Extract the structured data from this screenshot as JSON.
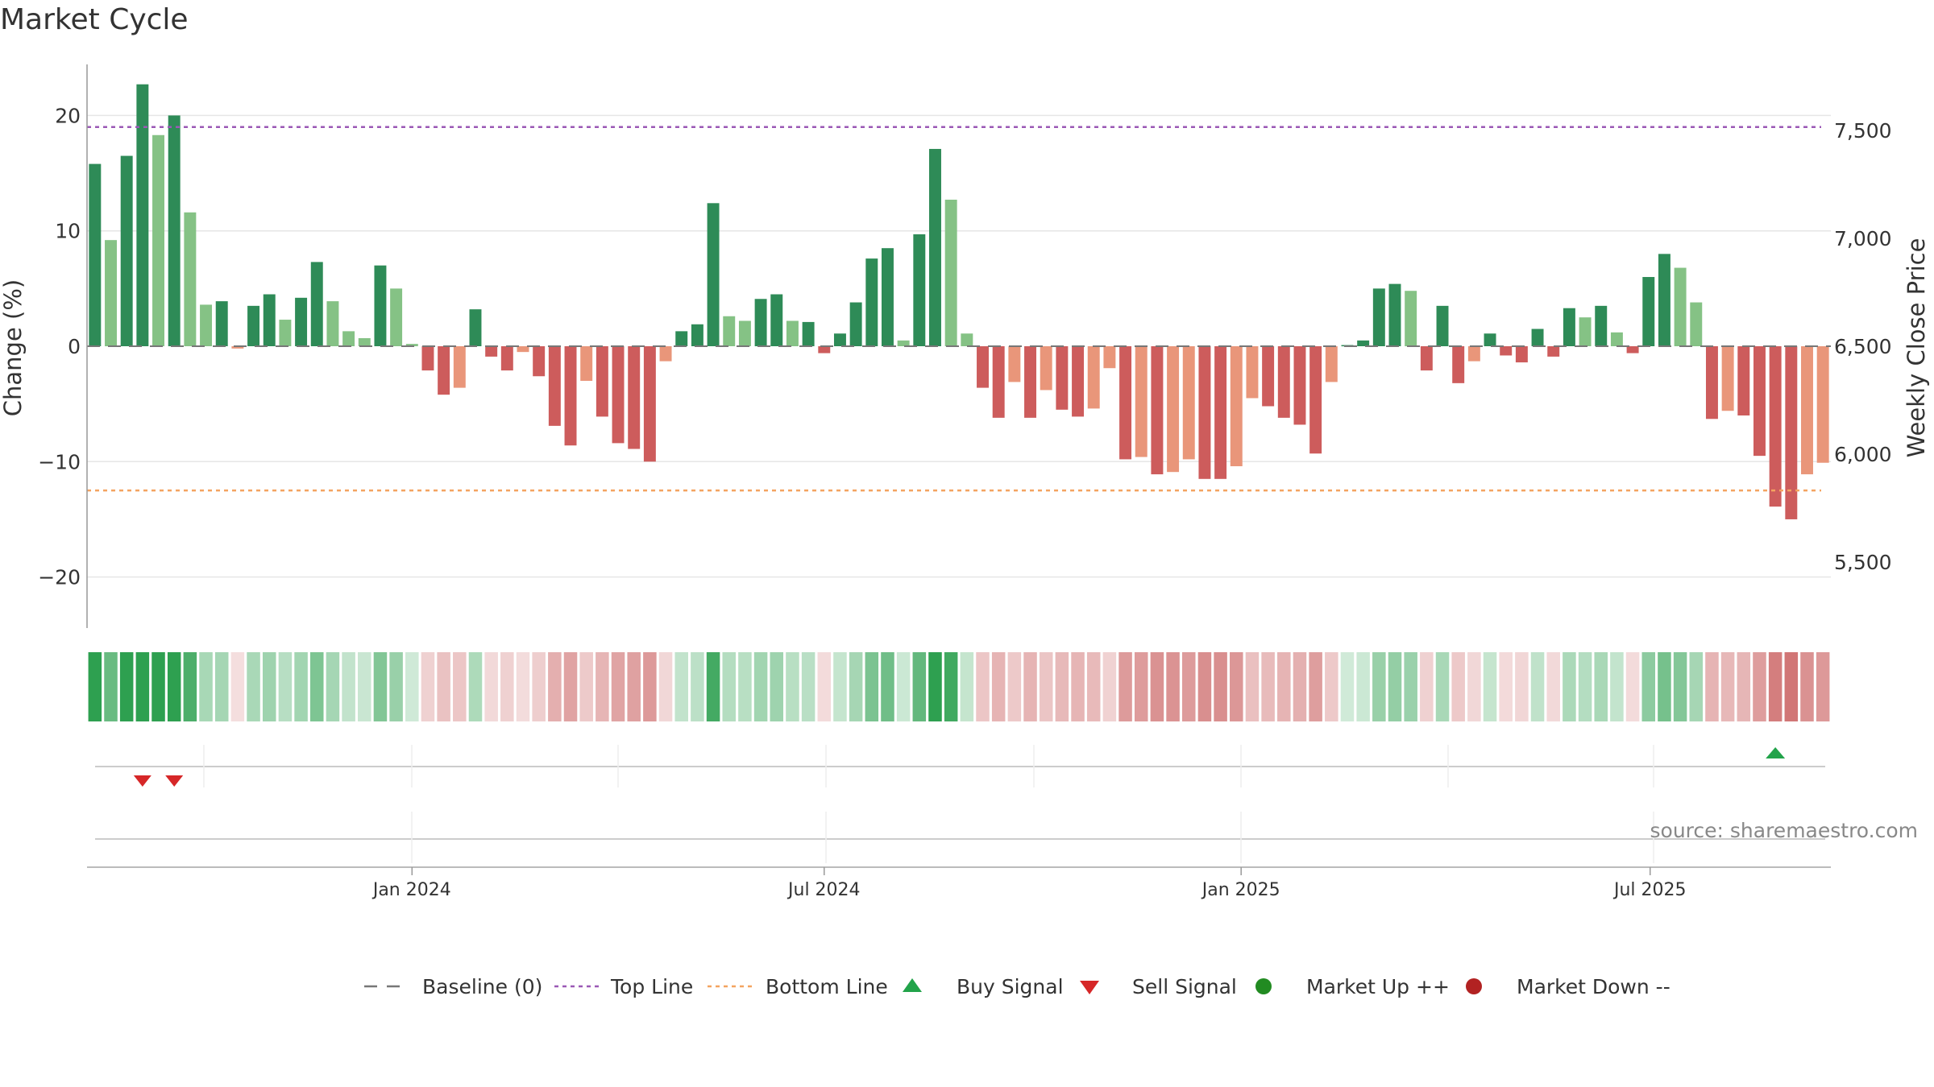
{
  "chart_data": {
    "type": "bar",
    "title": "Market Cycle",
    "ylabel_left": "Change (%)",
    "ylabel_right": "Weekly Close Price",
    "source": "source: sharemaestro.com",
    "ylim_left": [
      -24.5,
      24.5
    ],
    "yticks_left": [
      20,
      10,
      0,
      -10,
      -20
    ],
    "ytick_labels_left": [
      "20",
      "10",
      "0",
      "−10",
      "−20"
    ],
    "yticks_right_labels": [
      "7,500",
      "7,000",
      "6,500",
      "6,000",
      "5,500"
    ],
    "yticks_right_values": [
      7500,
      7000,
      6500,
      6000,
      5500
    ],
    "top_line": 19,
    "bottom_line": -12.5,
    "x_ticks": [
      "Jan 2024",
      "Jul 2024",
      "Jan 2025",
      "Jul 2025"
    ],
    "x_tick_index": [
      20.5,
      46.5,
      72.8,
      98.6
    ],
    "grid": true,
    "legend_position": "bottom",
    "values": [
      15.8,
      9.2,
      16.5,
      22.7,
      18.3,
      20.0,
      11.6,
      3.6,
      3.9,
      -0.2,
      3.5,
      4.5,
      2.3,
      4.2,
      7.3,
      3.9,
      1.3,
      0.7,
      7.0,
      5.0,
      0.2,
      -2.1,
      -4.2,
      -3.6,
      3.2,
      -0.9,
      -2.1,
      -0.5,
      -2.6,
      -6.9,
      -8.6,
      -3.0,
      -6.1,
      -8.4,
      -8.9,
      -10.0,
      -1.3,
      1.3,
      1.9,
      12.4,
      2.6,
      2.2,
      4.1,
      4.5,
      2.2,
      2.1,
      -0.6,
      1.1,
      3.8,
      7.6,
      8.5,
      0.5,
      9.7,
      17.1,
      12.7,
      1.1,
      -3.6,
      -6.2,
      -3.1,
      -6.2,
      -3.8,
      -5.5,
      -6.1,
      -5.4,
      -1.9,
      -9.8,
      -9.6,
      -11.1,
      -10.9,
      -9.8,
      -11.5,
      -11.5,
      -10.4,
      -4.5,
      -5.2,
      -6.2,
      -6.8,
      -9.3,
      -3.1,
      0.1,
      0.5,
      5.0,
      5.4,
      4.8,
      -2.1,
      3.5,
      -3.2,
      -1.3,
      1.1,
      -0.8,
      -1.4,
      1.5,
      -0.9,
      3.3,
      2.5,
      3.5,
      1.2,
      -0.6,
      6.0,
      8.0,
      6.8,
      3.8,
      -6.3,
      -5.6,
      -6.0,
      -9.5,
      -13.9,
      -15.0,
      -11.1,
      -10.1
    ],
    "shade": [
      "d",
      "l",
      "d",
      "d",
      "l",
      "d",
      "l",
      "l",
      "d",
      "l",
      "d",
      "d",
      "l",
      "d",
      "d",
      "l",
      "l",
      "l",
      "d",
      "l",
      "l",
      "d",
      "d",
      "l",
      "d",
      "d",
      "d",
      "l",
      "d",
      "d",
      "d",
      "l",
      "d",
      "d",
      "d",
      "d",
      "l",
      "d",
      "d",
      "d",
      "l",
      "l",
      "d",
      "d",
      "l",
      "d",
      "d",
      "d",
      "d",
      "d",
      "d",
      "l",
      "d",
      "d",
      "l",
      "l",
      "d",
      "d",
      "l",
      "d",
      "l",
      "d",
      "d",
      "l",
      "l",
      "d",
      "l",
      "d",
      "l",
      "l",
      "d",
      "d",
      "l",
      "l",
      "d",
      "d",
      "d",
      "d",
      "l",
      "d",
      "d",
      "d",
      "d",
      "l",
      "d",
      "d",
      "d",
      "l",
      "d",
      "d",
      "d",
      "d",
      "d",
      "d",
      "l",
      "d",
      "l",
      "d",
      "d",
      "d",
      "l",
      "l",
      "d",
      "l",
      "d",
      "d",
      "d",
      "d",
      "l",
      "l"
    ],
    "colors": {
      "up_dark": "#2e8b57",
      "up_light": "#85c285",
      "down_dark": "#cd5c5c",
      "down_light": "#e9967a",
      "top_line": "#9b59b6",
      "bottom_line": "#f4a460",
      "buy": "#22a34a",
      "sell": "#d62728",
      "market_up": "#228b22",
      "market_down": "#b22222",
      "baseline": "#777777"
    },
    "buy_signals": [
      106
    ],
    "sell_signals": [
      3,
      5
    ],
    "legend": [
      {
        "label": "Baseline (0)",
        "marker": "dash"
      },
      {
        "label": "Top Line",
        "marker": "dotted-purple"
      },
      {
        "label": "Bottom Line",
        "marker": "dotted-orange"
      },
      {
        "label": "Buy Signal",
        "marker": "triangle-up"
      },
      {
        "label": "Sell Signal",
        "marker": "triangle-down"
      },
      {
        "label": "Market Up ++",
        "marker": "circle-green"
      },
      {
        "label": "Market Down --",
        "marker": "circle-red"
      }
    ]
  }
}
